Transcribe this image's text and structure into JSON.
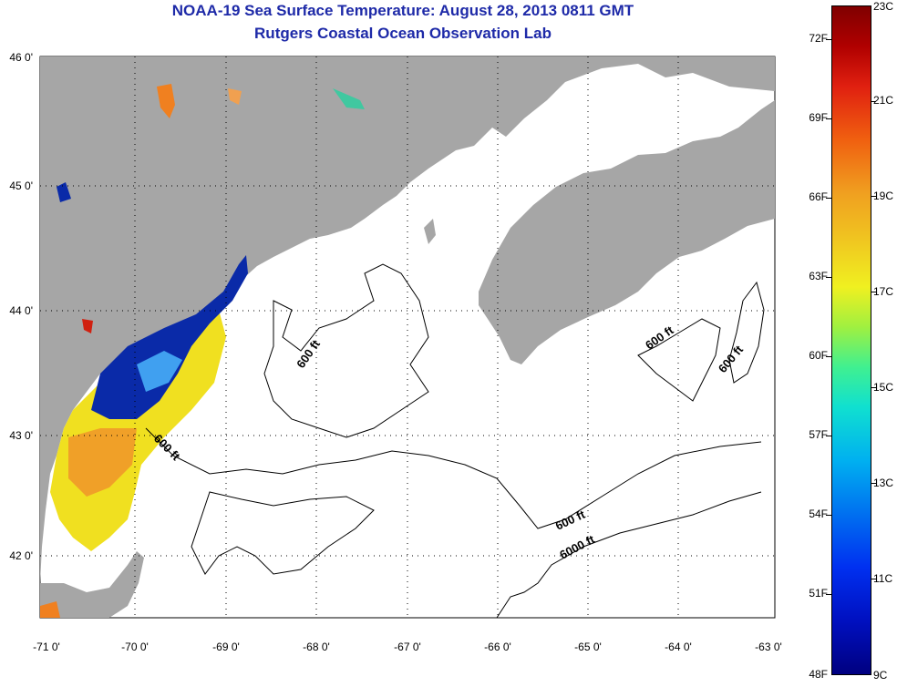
{
  "header": {
    "title": "NOAA-19 Sea Surface Temperature:  August 28, 2013 0811 GMT",
    "subtitle": "Rutgers Coastal Ocean Observation Lab"
  },
  "axes": {
    "lat_labels": [
      "46 0'",
      "45 0'",
      "44 0'",
      "43 0'",
      "42 0'"
    ],
    "lon_labels": [
      "-71 0'",
      "-70 0'",
      "-69 0'",
      "-68 0'",
      "-67 0'",
      "-66 0'",
      "-65 0'",
      "-64 0'",
      "-63 0'"
    ]
  },
  "contours": {
    "label_600a": "600 ft",
    "label_600b": "600 ft",
    "label_600c": "600 ft",
    "label_600d": "600 ft",
    "label_600e": "600 ft",
    "label_6000": "6000 ft"
  },
  "colorbar": {
    "fahrenheit": [
      "72F",
      "69F",
      "66F",
      "63F",
      "60F",
      "57F",
      "54F",
      "51F",
      "48F"
    ],
    "celsius": [
      "23C",
      "21C",
      "19C",
      "17C",
      "15C",
      "13C",
      "11C",
      "9C"
    ]
  },
  "colors": {
    "land": "#a6a6a6",
    "water": "#ffffff",
    "title": "#1e2aa8"
  }
}
